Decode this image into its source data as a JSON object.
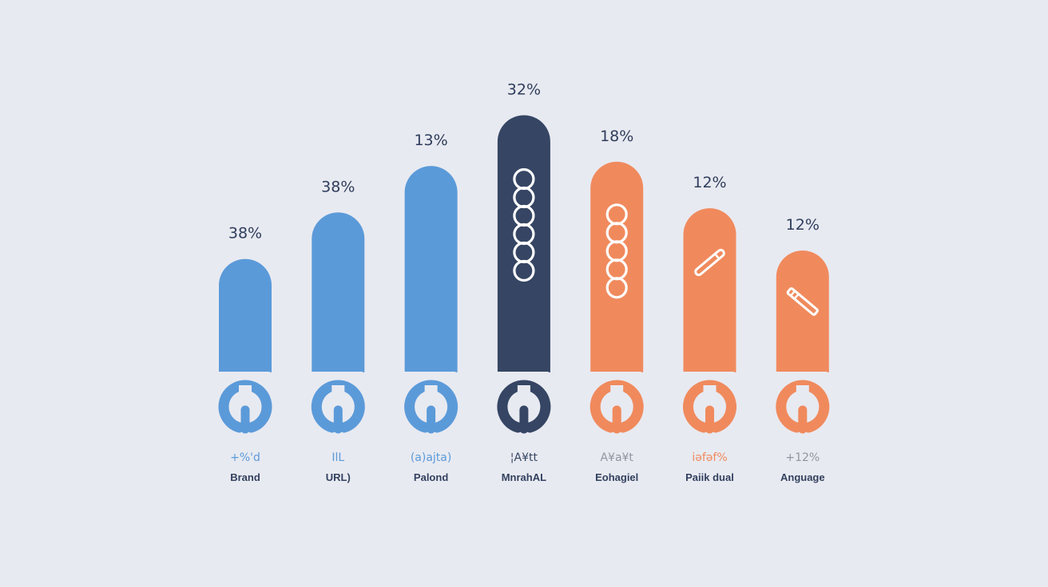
{
  "chart_data": {
    "type": "bar",
    "title": "",
    "xlabel": "",
    "ylabel": "",
    "categories": [
      "Brand",
      "URL)",
      "Palond",
      "MnrahAL",
      "Eohagiel",
      "Paiik dual",
      "Anguage"
    ],
    "value_labels": [
      "38%",
      "38%",
      "13%",
      "32%",
      "18%",
      "12%",
      "12%"
    ],
    "sub_labels": [
      "+%'d",
      "IlL",
      "(a)ajta)",
      "¦A¥tt",
      "A¥a¥t",
      "iǝfəf%",
      "+12%"
    ],
    "values": [
      21,
      32,
      43,
      55,
      44,
      33,
      23
    ],
    "value_units": "relative bar height (0-60 scale, estimated)",
    "ylim": [
      0,
      60
    ],
    "grid": false,
    "legend": "none",
    "colors": [
      "#5b9ad9",
      "#5b9ad9",
      "#5b9ad9",
      "#354563",
      "#f08a5d",
      "#f08a5d",
      "#f08a5d"
    ],
    "sub_label_colors": [
      "#5b9ad9",
      "#5b9ad9",
      "#5b9ad9",
      "#354563",
      "#8f95a1",
      "#f08a5d",
      "#8f95a1"
    ],
    "bar_icons": [
      "none",
      "none",
      "none",
      "chain-links-icon",
      "chain-links-icon",
      "pencil-icon",
      "pen-knife-icon"
    ],
    "base_icon": "wrench-head-icon"
  }
}
